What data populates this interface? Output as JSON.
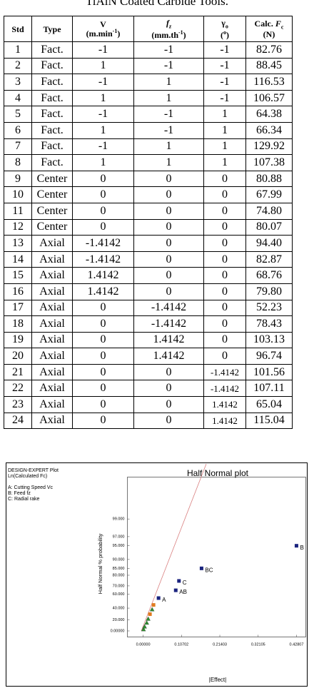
{
  "caption": "TiAlN Coated Carbide Tools.",
  "table": {
    "header": [
      {
        "lines": [
          [
            {
              "text": "Std"
            }
          ]
        ]
      },
      {
        "lines": [
          [
            {
              "text": "Type"
            }
          ]
        ]
      },
      {
        "lines": [
          [
            {
              "text": "V"
            }
          ],
          [
            {
              "text": "(m.min"
            },
            {
              "text": "-1",
              "sup": true
            },
            {
              "text": ")"
            }
          ]
        ]
      },
      {
        "lines": [
          [
            {
              "text": "f",
              "italic": true
            },
            {
              "text": "z",
              "sub": true,
              "italic": true
            }
          ],
          [
            {
              "text": "(mm.th"
            },
            {
              "text": "-1",
              "sup": true
            },
            {
              "text": ")"
            }
          ]
        ]
      },
      {
        "lines": [
          [
            {
              "text": "γ"
            },
            {
              "text": "o",
              "sub": true
            }
          ],
          [
            {
              "text": "("
            },
            {
              "text": "o",
              "sup": true
            },
            {
              "text": ")"
            }
          ]
        ]
      },
      {
        "lines": [
          [
            {
              "text": "Calc. "
            },
            {
              "text": "F",
              "italic": true
            },
            {
              "text": "c",
              "sub": true
            }
          ],
          [
            {
              "text": "(N)"
            }
          ]
        ]
      }
    ],
    "rows": [
      [
        "1",
        "Fact.",
        "-1",
        "-1",
        "-1",
        "82.76"
      ],
      [
        "2",
        "Fact.",
        "1",
        "-1",
        "-1",
        "88.45"
      ],
      [
        "3",
        "Fact.",
        "-1",
        "1",
        "-1",
        "116.53"
      ],
      [
        "4",
        "Fact.",
        "1",
        "1",
        "-1",
        "106.57"
      ],
      [
        "5",
        "Fact.",
        "-1",
        "-1",
        "1",
        "64.38"
      ],
      [
        "6",
        "Fact.",
        "1",
        "-1",
        "1",
        "66.34"
      ],
      [
        "7",
        "Fact.",
        "-1",
        "1",
        "1",
        "129.92"
      ],
      [
        "8",
        "Fact.",
        "1",
        "1",
        "1",
        "107.38"
      ],
      [
        "9",
        "Center",
        "0",
        "0",
        "0",
        "80.88"
      ],
      [
        "10",
        "Center",
        "0",
        "0",
        "0",
        "67.99"
      ],
      [
        "11",
        "Center",
        "0",
        "0",
        "0",
        "74.80"
      ],
      [
        "12",
        "Center",
        "0",
        "0",
        "0",
        "80.07"
      ],
      [
        "13",
        "Axial",
        "-1.4142",
        "0",
        "0",
        "94.40"
      ],
      [
        "14",
        "Axial",
        "-1.4142",
        "0",
        "0",
        "82.87"
      ],
      [
        "15",
        "Axial",
        "1.4142",
        "0",
        "0",
        "68.76"
      ],
      [
        "16",
        "Axial",
        "1.4142",
        "0",
        "0",
        "79.80"
      ],
      [
        "17",
        "Axial",
        "0",
        "-1.4142",
        "0",
        "52.23"
      ],
      [
        "18",
        "Axial",
        "0",
        "-1.4142",
        "0",
        "78.43"
      ],
      [
        "19",
        "Axial",
        "0",
        "1.4142",
        "0",
        "103.13"
      ],
      [
        "20",
        "Axial",
        "0",
        "1.4142",
        "0",
        "96.74"
      ],
      [
        "21",
        "Axial",
        "0",
        "0",
        "-1.4142",
        "101.56"
      ],
      [
        "22",
        "Axial",
        "0",
        "0",
        "-1.4142",
        "107.11"
      ],
      [
        "23",
        "Axial",
        "0",
        "0",
        "1.4142",
        "65.04"
      ],
      [
        "24",
        "Axial",
        "0",
        "0",
        "1.4142",
        "115.04"
      ]
    ]
  },
  "figure": {
    "type": "half-normal",
    "info": [
      "DESIGN-EXPERT Plot",
      "Ln(Calculated Fc)"
    ],
    "factors": [
      "A: Cutting Speed Vc",
      "B: Feed fz",
      "C: Radial rake"
    ],
    "title": "Half Normal plot",
    "y_label": "Half Normal % probability",
    "x_label": "|Effect|",
    "xlim": [
      -0.044,
      0.454
    ],
    "ylim": [
      0,
      99.96
    ],
    "xticks": [
      {
        "value": 0,
        "label": "0.00000"
      },
      {
        "value": 0.10702,
        "label": "0.10702"
      },
      {
        "value": 0.21403,
        "label": "0.21403"
      },
      {
        "value": 0.32105,
        "label": "0.32105"
      },
      {
        "value": 0.42807,
        "label": "0.42807"
      }
    ],
    "yticks": [
      {
        "value": 0,
        "label": "0.00000"
      },
      {
        "value": 20,
        "label": "20.000"
      },
      {
        "value": 40,
        "label": "40.000"
      },
      {
        "value": 60,
        "label": "60.000"
      },
      {
        "value": 70,
        "label": "70.000"
      },
      {
        "value": 80,
        "label": "80.000"
      },
      {
        "value": 85,
        "label": "85.000"
      },
      {
        "value": 90,
        "label": "90.000"
      },
      {
        "value": 95,
        "label": "95.000"
      },
      {
        "value": 97,
        "label": "97.000"
      },
      {
        "value": 99,
        "label": "99.000"
      }
    ],
    "points": [
      {
        "x": 0.001,
        "y": 3,
        "color": "#2e8b2e",
        "shape": "triangle"
      },
      {
        "x": 0.004,
        "y": 8,
        "color": "#2e8b2e",
        "shape": "triangle"
      },
      {
        "x": 0.01,
        "y": 15,
        "color": "#2e8b2e",
        "shape": "triangle"
      },
      {
        "x": 0.014,
        "y": 22,
        "color": "#2e8b2e",
        "shape": "triangle"
      },
      {
        "x": 0.019,
        "y": 30,
        "color": "#e07b20",
        "shape": "square"
      },
      {
        "x": 0.025,
        "y": 38,
        "color": "#2e8b2e",
        "shape": "triangle"
      },
      {
        "x": 0.029,
        "y": 45,
        "color": "#e07b20",
        "shape": "square"
      },
      {
        "x": 0.043,
        "y": 55,
        "color": "#1a237e",
        "shape": "square",
        "label": "A"
      },
      {
        "x": 0.091,
        "y": 65,
        "color": "#1a237e",
        "shape": "square",
        "label": "AB"
      },
      {
        "x": 0.1,
        "y": 75,
        "color": "#1a237e",
        "shape": "square",
        "label": "C"
      },
      {
        "x": 0.163,
        "y": 85,
        "color": "#1a237e",
        "shape": "square",
        "label": "BC"
      },
      {
        "x": 0.428,
        "y": 95,
        "color": "#1a237e",
        "shape": "square",
        "label": "B"
      }
    ]
  }
}
